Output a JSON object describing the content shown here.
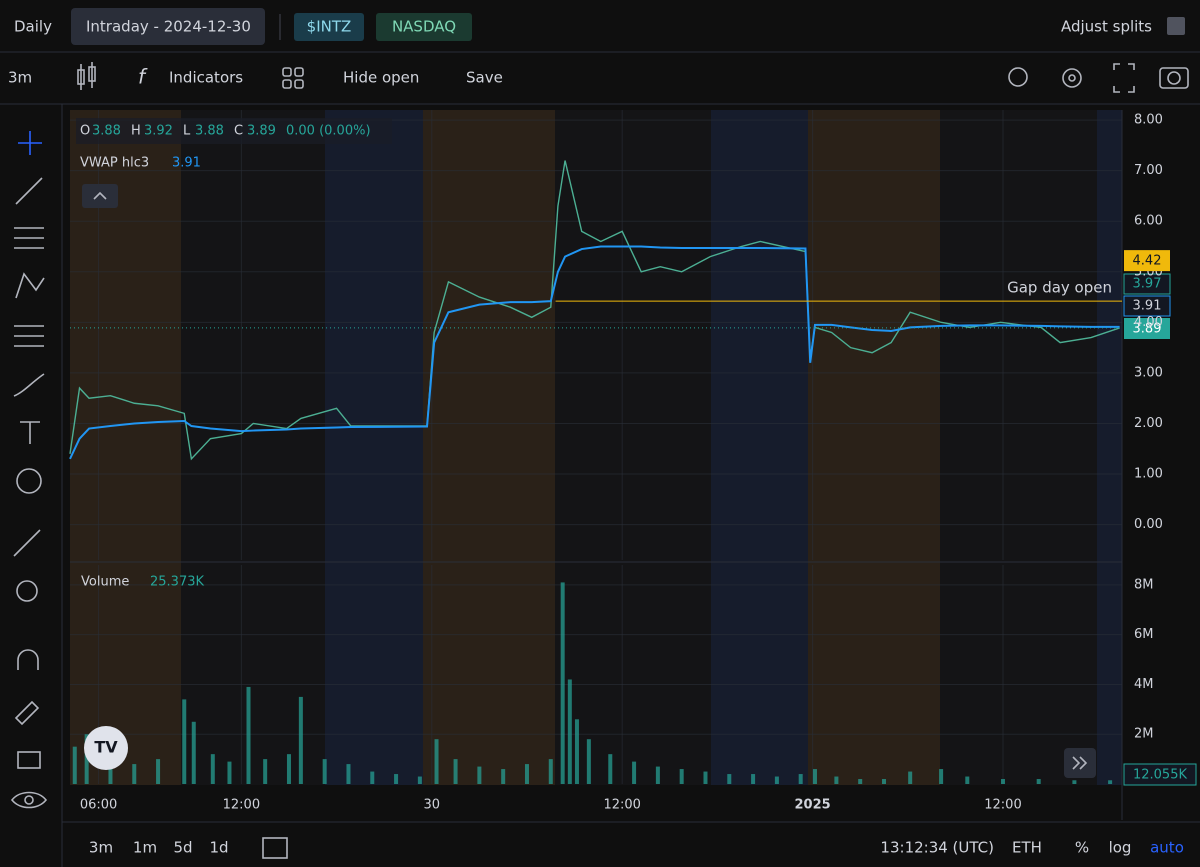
{
  "toolbar": {
    "interval": "Daily",
    "range": "Intraday - 2024-12-30",
    "symbol": "$INTZ",
    "exchange": "NASDAQ",
    "adjust": "Adjust splits"
  },
  "toolbar2": {
    "timeframe": "3m",
    "indicators": "Indicators",
    "hide_open": "Hide open",
    "save": "Save"
  },
  "legend": {
    "o_label": "O",
    "o": "3.88",
    "h_label": "H",
    "h": "3.92",
    "l_label": "L",
    "l": "3.88",
    "c_label": "C",
    "change": "0.00 (0.00%)",
    "volume_value": "25.373K"
  },
  "price_badge_other": "3.97",
  "volume_badge": "12.055K",
  "bottom_bar": {
    "ranges": [
      "3m",
      "1m",
      "5d",
      "1d"
    ],
    "clock": "13:12:34 (UTC)",
    "session": "ETH",
    "percent": "%",
    "log": "log",
    "auto": "auto"
  },
  "chart_data": [
    {
      "type": "line",
      "xlim": [
        0.8,
        45
      ],
      "ylim": [
        -0.7,
        8.2
      ],
      "yticks": [
        {
          "value": 0,
          "label": "0.00"
        },
        {
          "value": 1,
          "label": "1.00"
        },
        {
          "value": 2,
          "label": "2.00"
        },
        {
          "value": 3,
          "label": "3.00"
        },
        {
          "value": 4,
          "label": "4.00"
        },
        {
          "value": 5,
          "label": "5.00"
        },
        {
          "value": 6,
          "label": "6.00"
        },
        {
          "value": 7,
          "label": "7.00"
        },
        {
          "value": 8,
          "label": "8.00"
        }
      ],
      "x": [
        0.8,
        1.2,
        1.6,
        2.5,
        3.5,
        4.5,
        5.6,
        5.9,
        6.7,
        8.0,
        8.5,
        9.9,
        10.5,
        12.0,
        12.6,
        15.8,
        16.1,
        16.7,
        18.0,
        19.3,
        20.2,
        21.0,
        21.3,
        21.6,
        22.3,
        23.1,
        24.0,
        24.8,
        25.6,
        26.5,
        27.7,
        29.0,
        29.8,
        31.7,
        31.9,
        32.1,
        32.8,
        33.6,
        34.5,
        35.3,
        36.1,
        37.4,
        38.6,
        39.9,
        41.6,
        42.4,
        43.7,
        44.9
      ],
      "series": [
        {
          "color": "#4caf93",
          "values": [
            1.4,
            2.7,
            2.5,
            2.55,
            2.4,
            2.35,
            2.2,
            1.3,
            1.7,
            1.8,
            2.0,
            1.9,
            2.1,
            2.3,
            1.95,
            1.95,
            3.8,
            4.8,
            4.5,
            4.3,
            4.1,
            4.3,
            6.3,
            7.2,
            5.8,
            5.6,
            5.8,
            5.0,
            5.1,
            5.0,
            5.3,
            5.5,
            5.6,
            5.4,
            3.3,
            3.9,
            3.8,
            3.5,
            3.4,
            3.6,
            4.2,
            4.0,
            3.9,
            4.0,
            3.9,
            3.6,
            3.7,
            3.89
          ]
        },
        {
          "name": "VWAP hlc3",
          "color": "#2196f3",
          "values": [
            1.3,
            1.7,
            1.9,
            1.95,
            2.0,
            2.03,
            2.05,
            1.95,
            1.9,
            1.85,
            1.86,
            1.88,
            1.9,
            1.92,
            1.93,
            1.94,
            3.6,
            4.2,
            4.35,
            4.4,
            4.4,
            4.42,
            5.0,
            5.3,
            5.45,
            5.5,
            5.5,
            5.5,
            5.48,
            5.47,
            5.47,
            5.47,
            5.47,
            5.46,
            3.2,
            3.95,
            3.95,
            3.9,
            3.85,
            3.83,
            3.9,
            3.93,
            3.94,
            3.94,
            3.93,
            3.92,
            3.91,
            3.91
          ]
        }
      ],
      "reference_line": {
        "label": "Gap day open",
        "value": 4.42,
        "x": 21.2
      }
    },
    {
      "type": "bar",
      "xlim": [
        0.8,
        45
      ],
      "ylim": [
        0,
        8800000
      ],
      "yticks": [
        {
          "value": 2000000,
          "label": "2M"
        },
        {
          "value": 4000000,
          "label": "4M"
        },
        {
          "value": 6000000,
          "label": "6M"
        },
        {
          "value": 8000000,
          "label": "8M"
        }
      ],
      "xticks": [
        {
          "value": 2,
          "label": "06:00"
        },
        {
          "value": 8,
          "label": "12:00"
        },
        {
          "value": 16,
          "label": "30"
        },
        {
          "value": 24,
          "label": "12:00"
        },
        {
          "value": 32,
          "label": "2025"
        },
        {
          "value": 40,
          "label": "12:00"
        }
      ],
      "x": [
        1.0,
        1.5,
        2.5,
        3.5,
        4.5,
        5.6,
        6.0,
        6.8,
        7.5,
        8.3,
        9.0,
        10.0,
        10.5,
        11.5,
        12.5,
        13.5,
        14.5,
        15.5,
        16.2,
        17.0,
        18.0,
        19.0,
        20.0,
        21.0,
        21.5,
        21.8,
        22.1,
        22.6,
        23.5,
        24.5,
        25.5,
        26.5,
        27.5,
        28.5,
        29.5,
        30.5,
        31.5,
        32.1,
        33.0,
        34.0,
        35.0,
        36.1,
        37.4,
        38.5,
        40.0,
        41.5,
        43.0,
        44.5
      ],
      "series": [
        {
          "name": "Volume",
          "color": "#26a69a",
          "values": [
            1500000,
            2000000,
            1000000,
            800000,
            1000000,
            3400000,
            2500000,
            1200000,
            900000,
            3900000,
            1000000,
            1200000,
            3500000,
            1000000,
            800000,
            500000,
            400000,
            300000,
            1800000,
            1000000,
            700000,
            600000,
            800000,
            1000000,
            8100000,
            4200000,
            2600000,
            1800000,
            1200000,
            900000,
            700000,
            600000,
            500000,
            400000,
            400000,
            300000,
            400000,
            600000,
            300000,
            200000,
            200000,
            500000,
            600000,
            300000,
            200000,
            200000,
            150000,
            150000
          ]
        }
      ]
    }
  ]
}
